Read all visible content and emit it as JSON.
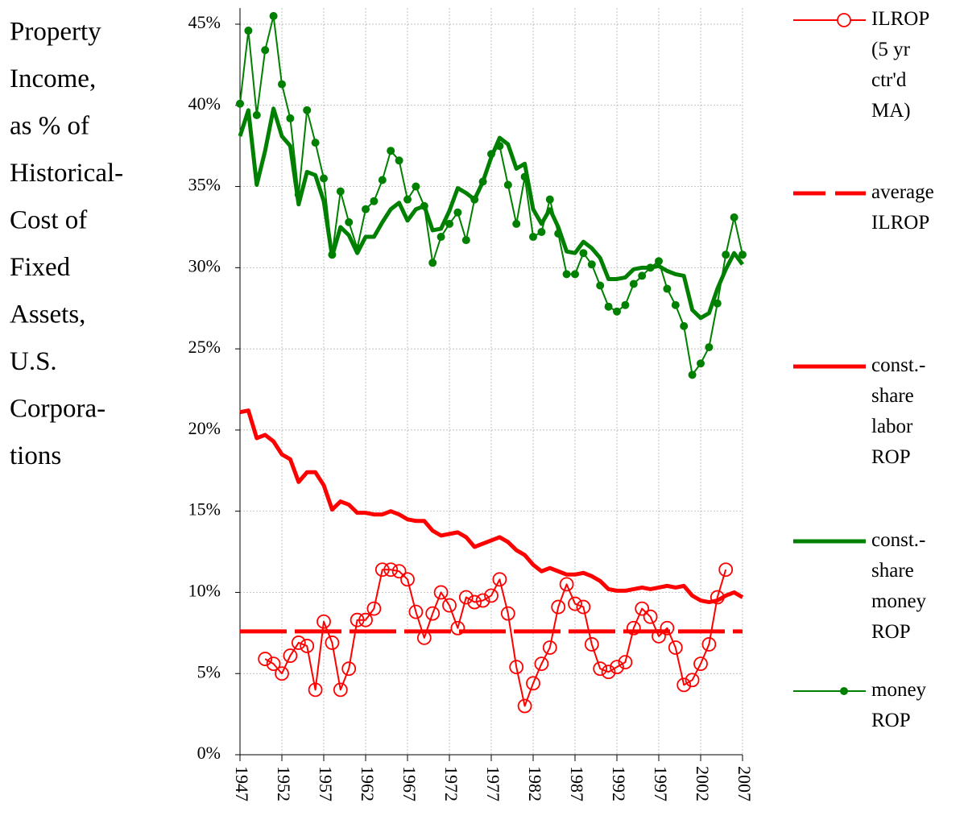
{
  "chart_data": {
    "type": "line",
    "ylabel_lines": [
      "Property",
      "Income,",
      "as % of",
      "Historical-",
      "Cost of",
      "Fixed",
      "Assets,",
      "U.S.",
      "Corpora-",
      "tions"
    ],
    "xlim": [
      1947,
      2007
    ],
    "xticks": [
      1947,
      1952,
      1957,
      1962,
      1967,
      1972,
      1977,
      1982,
      1987,
      1992,
      1997,
      2002,
      2007
    ],
    "ylim": [
      0,
      45
    ],
    "yticks": [
      {
        "value": 0,
        "label": "0%"
      },
      {
        "value": 5,
        "label": "5%"
      },
      {
        "value": 10,
        "label": "10%"
      },
      {
        "value": 15,
        "label": "15%"
      },
      {
        "value": 20,
        "label": "20%"
      },
      {
        "value": 25,
        "label": "25%"
      },
      {
        "value": 30,
        "label": "30%"
      },
      {
        "value": 35,
        "label": "35%"
      },
      {
        "value": 40,
        "label": "40%"
      },
      {
        "value": 45,
        "label": "45%"
      }
    ],
    "grid": true,
    "x": [
      1947,
      1948,
      1949,
      1950,
      1951,
      1952,
      1953,
      1954,
      1955,
      1956,
      1957,
      1958,
      1959,
      1960,
      1961,
      1962,
      1963,
      1964,
      1965,
      1966,
      1967,
      1968,
      1969,
      1970,
      1971,
      1972,
      1973,
      1974,
      1975,
      1976,
      1977,
      1978,
      1979,
      1980,
      1981,
      1982,
      1983,
      1984,
      1985,
      1986,
      1987,
      1988,
      1989,
      1990,
      1991,
      1992,
      1993,
      1994,
      1995,
      1996,
      1997,
      1998,
      1999,
      2000,
      2001,
      2002,
      2003,
      2004,
      2005,
      2006,
      2007
    ],
    "reference_lines": [
      {
        "name": "average ILROP",
        "value": 7.6,
        "color": "#ff0000",
        "dash": true
      }
    ],
    "series": [
      {
        "name": "ILROP (5 yr ctr'd MA)",
        "color": "#ff0000",
        "marker": "open-circle",
        "width": 2,
        "values": [
          null,
          null,
          null,
          5.9,
          5.6,
          5.0,
          6.1,
          6.9,
          6.7,
          4.0,
          8.2,
          6.9,
          4.0,
          5.3,
          8.3,
          8.3,
          9.0,
          11.4,
          11.4,
          11.3,
          10.8,
          8.8,
          7.2,
          8.7,
          10.0,
          9.2,
          7.8,
          9.7,
          9.4,
          9.5,
          9.8,
          10.8,
          8.7,
          5.4,
          3.0,
          4.4,
          5.6,
          6.6,
          9.1,
          10.5,
          9.3,
          9.1,
          6.8,
          5.3,
          5.1,
          5.4,
          5.7,
          7.8,
          9.0,
          8.5,
          7.3,
          7.8,
          6.6,
          4.3,
          4.6,
          5.6,
          6.8,
          9.7,
          11.4,
          null,
          null
        ]
      },
      {
        "name": "const.-share labor ROP",
        "color": "#ff0000",
        "marker": "none",
        "width": 5,
        "values": [
          21.1,
          21.2,
          19.5,
          19.7,
          19.3,
          18.5,
          18.2,
          16.8,
          17.4,
          17.4,
          16.6,
          15.1,
          15.6,
          15.4,
          14.9,
          14.9,
          14.8,
          14.8,
          15.0,
          14.8,
          14.5,
          14.4,
          14.4,
          13.8,
          13.5,
          13.6,
          13.7,
          13.4,
          12.8,
          13.0,
          13.2,
          13.4,
          13.1,
          12.6,
          12.3,
          11.7,
          11.3,
          11.5,
          11.3,
          11.1,
          11.1,
          11.2,
          11.0,
          10.7,
          10.2,
          10.1,
          10.1,
          10.2,
          10.3,
          10.2,
          10.3,
          10.4,
          10.3,
          10.4,
          9.8,
          9.5,
          9.4,
          9.5,
          9.8,
          10.0,
          9.7
        ]
      },
      {
        "name": "const.-share money ROP",
        "color": "#008000",
        "marker": "none",
        "width": 5,
        "values": [
          38.1,
          39.7,
          35.1,
          37.2,
          39.8,
          38.1,
          37.5,
          33.9,
          35.9,
          35.7,
          34.1,
          30.7,
          32.5,
          32.0,
          30.9,
          31.9,
          31.9,
          32.8,
          33.6,
          34.0,
          32.9,
          33.6,
          33.8,
          32.3,
          32.4,
          33.5,
          34.9,
          34.6,
          34.2,
          35.3,
          36.8,
          38.0,
          37.6,
          36.1,
          36.4,
          33.6,
          32.7,
          33.6,
          32.5,
          31.0,
          30.9,
          31.6,
          31.2,
          30.6,
          29.3,
          29.3,
          29.4,
          29.9,
          30.0,
          30.0,
          30.1,
          29.8,
          29.6,
          29.5,
          27.4,
          26.9,
          27.2,
          28.7,
          29.9,
          30.9,
          30.2
        ]
      },
      {
        "name": "money ROP",
        "color": "#008000",
        "marker": "dot",
        "width": 2,
        "values": [
          40.1,
          44.6,
          39.4,
          43.4,
          45.5,
          41.3,
          39.2,
          34.5,
          39.7,
          37.7,
          35.5,
          30.8,
          34.7,
          32.8,
          31.2,
          33.6,
          34.1,
          35.4,
          37.2,
          36.6,
          34.2,
          35.0,
          33.8,
          30.3,
          31.9,
          32.7,
          33.4,
          31.7,
          34.2,
          35.3,
          37.0,
          37.5,
          35.1,
          32.7,
          35.6,
          31.9,
          32.2,
          34.2,
          32.1,
          29.6,
          29.6,
          30.9,
          30.2,
          28.9,
          27.6,
          27.3,
          27.7,
          29.0,
          29.5,
          30.0,
          30.4,
          28.7,
          27.7,
          26.4,
          23.4,
          24.1,
          25.1,
          27.8,
          30.8,
          33.1,
          30.8
        ]
      }
    ]
  }
}
